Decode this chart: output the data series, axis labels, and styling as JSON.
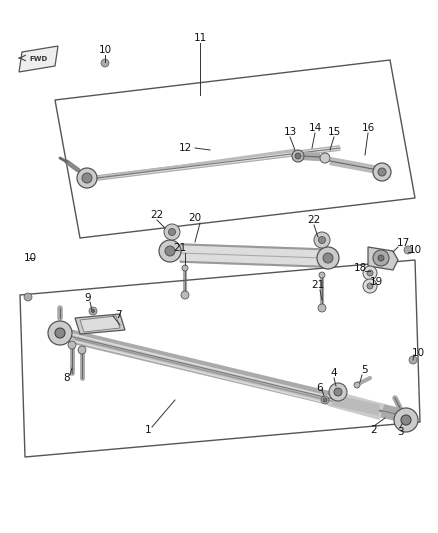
{
  "bg_color": "#ffffff",
  "lc": "#333333",
  "figsize": [
    4.38,
    5.33
  ],
  "dpi": 100
}
